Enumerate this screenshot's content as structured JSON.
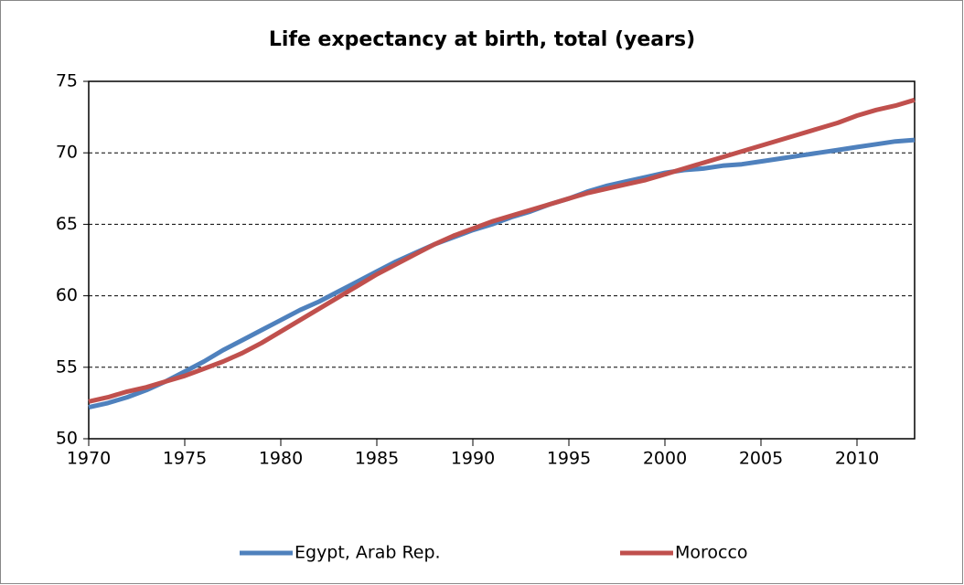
{
  "chart_data": {
    "type": "line",
    "title": "Life expectancy at birth, total (years)",
    "x": [
      1970,
      1971,
      1972,
      1973,
      1974,
      1975,
      1976,
      1977,
      1978,
      1979,
      1980,
      1981,
      1982,
      1983,
      1984,
      1985,
      1986,
      1987,
      1988,
      1989,
      1990,
      1991,
      1992,
      1993,
      1994,
      1995,
      1996,
      1997,
      1998,
      1999,
      2000,
      2001,
      2002,
      2003,
      2004,
      2005,
      2006,
      2007,
      2008,
      2009,
      2010,
      2011,
      2012,
      2013
    ],
    "series": [
      {
        "name": "Egypt, Arab Rep.",
        "color": "#4f81bd",
        "values": [
          52.2,
          52.5,
          52.9,
          53.4,
          54.0,
          54.7,
          55.4,
          56.2,
          56.9,
          57.6,
          58.3,
          59.0,
          59.6,
          60.3,
          61.0,
          61.7,
          62.4,
          63.0,
          63.6,
          64.1,
          64.6,
          65.0,
          65.5,
          65.9,
          66.4,
          66.8,
          67.3,
          67.7,
          68.0,
          68.3,
          68.6,
          68.8,
          68.9,
          69.1,
          69.2,
          69.4,
          69.6,
          69.8,
          70.0,
          70.2,
          70.4,
          70.6,
          70.8,
          70.9
        ]
      },
      {
        "name": "Morocco",
        "color": "#c0504d",
        "values": [
          52.6,
          52.9,
          53.3,
          53.6,
          54.0,
          54.4,
          54.9,
          55.4,
          56.0,
          56.7,
          57.5,
          58.3,
          59.1,
          59.9,
          60.7,
          61.5,
          62.2,
          62.9,
          63.6,
          64.2,
          64.7,
          65.2,
          65.6,
          66.0,
          66.4,
          66.8,
          67.2,
          67.5,
          67.8,
          68.1,
          68.5,
          68.9,
          69.3,
          69.7,
          70.1,
          70.5,
          70.9,
          71.3,
          71.7,
          72.1,
          72.6,
          73.0,
          73.3,
          73.7
        ]
      }
    ],
    "xlim": [
      1970,
      2013
    ],
    "xticks": [
      1970,
      1975,
      1980,
      1985,
      1990,
      1995,
      2000,
      2005,
      2010
    ],
    "ylim": [
      50,
      75
    ],
    "yticks": [
      50,
      55,
      60,
      65,
      70,
      75
    ],
    "grid": true,
    "legend": "bottom"
  }
}
